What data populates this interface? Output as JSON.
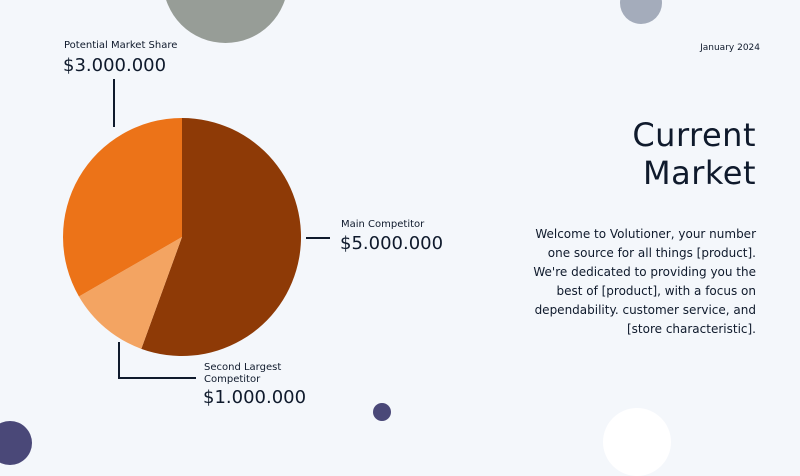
{
  "header": {
    "date": "January 2024"
  },
  "slide": {
    "title_line1": "Current",
    "title_line2": "Market",
    "body": "Welcome to Volutioner, your number one source for all things [product]. We're dedicated to providing you the best of [product], with a focus on dependability. customer service, and [store characteristic]."
  },
  "callouts": {
    "potential": {
      "label": "Potential Market Share",
      "value": "$3.000.000"
    },
    "main": {
      "label": "Main Competitor",
      "value": "$5.000.000"
    },
    "second": {
      "label_line1": "Second Largest",
      "label_line2": "Competitor",
      "value": "$1.000.000"
    }
  },
  "chart_data": {
    "type": "pie",
    "categories": [
      "Main Competitor",
      "Second Largest Competitor",
      "Potential Market Share"
    ],
    "values": [
      5000000,
      1000000,
      3000000
    ],
    "colors": [
      "#8e3a06",
      "#f3a462",
      "#ec7318"
    ],
    "start_angle_deg": 0,
    "direction": "clockwise"
  }
}
